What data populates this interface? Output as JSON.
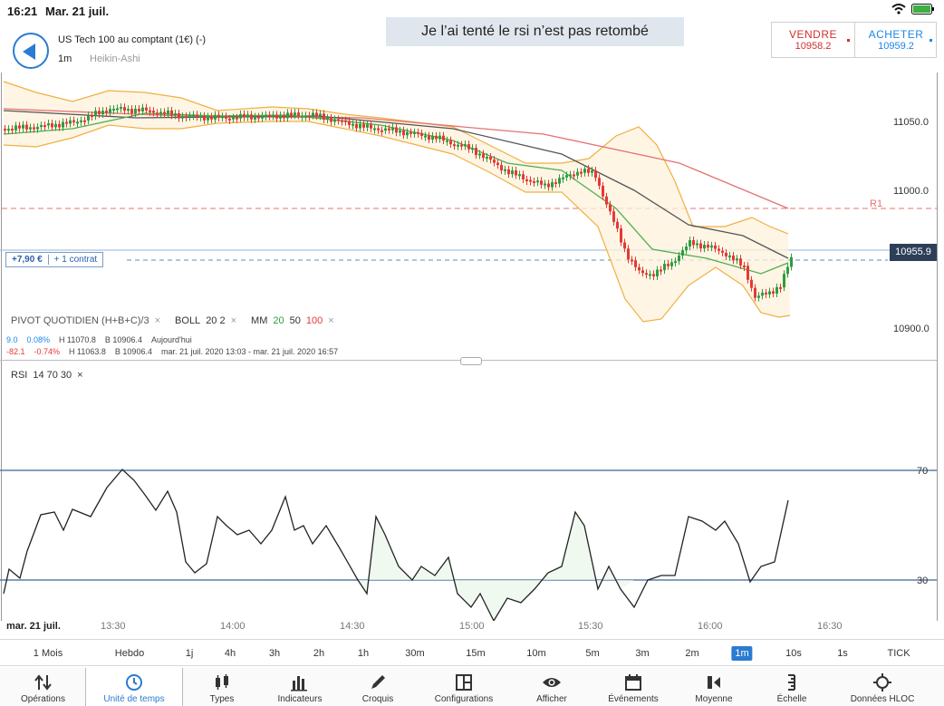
{
  "status": {
    "time": "16:21",
    "date": "Mar. 21 juil."
  },
  "annotation": "Je l’ai tenté le rsi n’est pas retombé",
  "instrument": {
    "title": "US Tech 100 au comptant (1€) (-)",
    "timeframe": "1m",
    "chart_type": "Heikin-Ashi"
  },
  "trade": {
    "sell_label": "VENDRE",
    "sell_price": "10958.2",
    "buy_label": "ACHETER",
    "buy_price": "10959.2"
  },
  "position": {
    "pnl": "+7,90 €",
    "contracts": "+ 1 contrat"
  },
  "current_price": "10955.9",
  "price_axis": [
    "11050.0",
    "11000.0",
    "10900.0"
  ],
  "pivot_label": "R1",
  "indicators": {
    "pivot": "PIVOT  QUOTIDIEN  (H+B+C)/3",
    "boll_name": "BOLL",
    "boll_params": "20  2",
    "mm_name": "MM",
    "mm_20": "20",
    "mm_50": "50",
    "mm_100": "100",
    "close": "×"
  },
  "stats": {
    "row1": {
      "a": "9.0",
      "b": "0.08%",
      "c": "H 11070.8",
      "d": "B 10906.4",
      "e": "Aujourd'hui"
    },
    "row2": {
      "a": "-82.1",
      "b": "-0.74%",
      "c": "H 11063.8",
      "d": "B 10906.4",
      "e": "mar. 21 juil. 2020 13:03 - mar. 21 juil. 2020 16:57"
    }
  },
  "rsi": {
    "name": "RSI",
    "params": "14  70  30",
    "level_high": "70",
    "level_low": "30"
  },
  "date_axis": [
    "mar. 21 juil.",
    "13:30",
    "14:00",
    "14:30",
    "15:00",
    "15:30",
    "16:00",
    "16:30"
  ],
  "timeframes": [
    "1 Mois",
    "Hebdo",
    "1j",
    "4h",
    "3h",
    "2h",
    "1h",
    "30m",
    "15m",
    "10m",
    "5m",
    "3m",
    "2m",
    "1m",
    "10s",
    "1s",
    "TICK"
  ],
  "active_timeframe": "1m",
  "nav": [
    {
      "label": "Opérations",
      "icon": "operations-icon"
    },
    {
      "label": "Unité de temps",
      "icon": "clock-icon"
    },
    {
      "label": "Types",
      "icon": "candles-icon"
    },
    {
      "label": "Indicateurs",
      "icon": "bars-icon"
    },
    {
      "label": "Croquis",
      "icon": "pencil-icon"
    },
    {
      "label": "Configurations",
      "icon": "layout-icon"
    },
    {
      "label": "Afficher",
      "icon": "eye-icon"
    },
    {
      "label": "Événements",
      "icon": "calendar-icon"
    },
    {
      "label": "Moyenne",
      "icon": "average-icon"
    },
    {
      "label": "Échelle",
      "icon": "scale-icon"
    },
    {
      "label": "Données HLOC",
      "icon": "crosshair-icon"
    }
  ],
  "colors": {
    "accent": "#2b7bd1",
    "up": "#2e9d3e",
    "down": "#e53935",
    "boll": "#f0b040",
    "mm100": "#e57373",
    "mm50": "#555555",
    "mm20": "#4caf50"
  }
}
